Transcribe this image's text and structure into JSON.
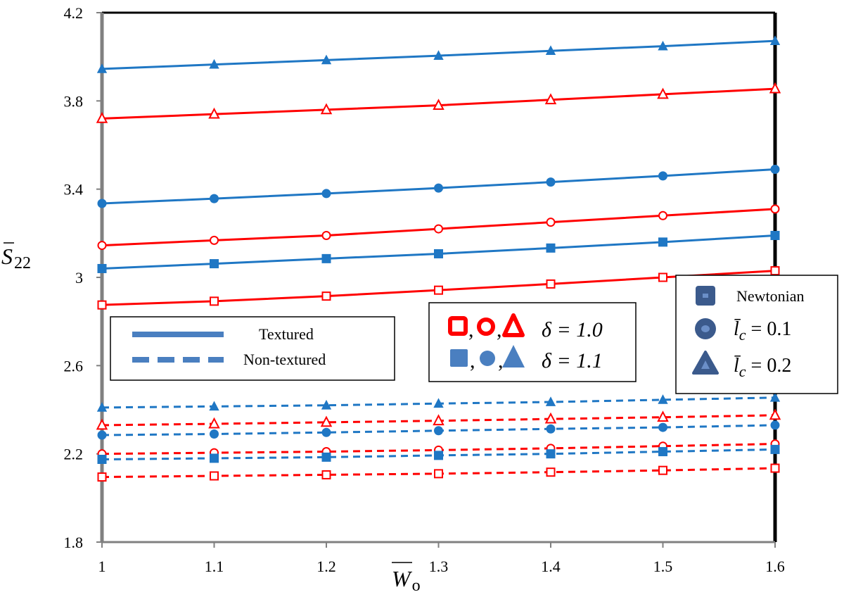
{
  "chart_data": {
    "type": "line",
    "x": [
      1,
      1.1,
      1.2,
      1.3,
      1.4,
      1.5,
      1.6
    ],
    "xlim": [
      1,
      1.6
    ],
    "ylim": [
      1.8,
      4.2
    ],
    "xticks": [
      "1",
      "1.1",
      "1.2",
      "1.3",
      "1.4",
      "1.5",
      "1.6"
    ],
    "yticks": [
      "1.8",
      "2.2",
      "2.6",
      "3",
      "3.4",
      "3.8",
      "4.2"
    ],
    "xlabel_base": "W",
    "xlabel_sub": "o",
    "ylabel_base": "S",
    "ylabel_sub": "22",
    "grid": false,
    "series": [
      {
        "style": "solid",
        "color": "#1f77c4",
        "marker": "triangle-filled",
        "values": [
          3.945,
          3.965,
          3.985,
          4.005,
          4.027,
          4.048,
          4.072
        ]
      },
      {
        "style": "solid",
        "color": "#ff0000",
        "marker": "triangle-open",
        "values": [
          3.72,
          3.74,
          3.76,
          3.78,
          3.805,
          3.83,
          3.855
        ]
      },
      {
        "style": "solid",
        "color": "#1f77c4",
        "marker": "circle-filled",
        "values": [
          3.335,
          3.357,
          3.38,
          3.405,
          3.432,
          3.46,
          3.49
        ]
      },
      {
        "style": "solid",
        "color": "#ff0000",
        "marker": "circle-open",
        "values": [
          3.145,
          3.168,
          3.19,
          3.22,
          3.25,
          3.28,
          3.31
        ]
      },
      {
        "style": "solid",
        "color": "#1f77c4",
        "marker": "square-filled",
        "values": [
          3.04,
          3.062,
          3.085,
          3.107,
          3.133,
          3.16,
          3.19
        ]
      },
      {
        "style": "solid",
        "color": "#ff0000",
        "marker": "square-open",
        "values": [
          2.875,
          2.892,
          2.915,
          2.942,
          2.97,
          3.0,
          3.03
        ]
      },
      {
        "style": "dashed",
        "color": "#1f77c4",
        "marker": "triangle-filled",
        "values": [
          2.41,
          2.415,
          2.42,
          2.428,
          2.435,
          2.445,
          2.455
        ]
      },
      {
        "style": "dashed",
        "color": "#ff0000",
        "marker": "triangle-open",
        "values": [
          2.33,
          2.336,
          2.343,
          2.35,
          2.358,
          2.366,
          2.375
        ]
      },
      {
        "style": "dashed",
        "color": "#1f77c4",
        "marker": "circle-filled",
        "values": [
          2.285,
          2.29,
          2.297,
          2.305,
          2.313,
          2.32,
          2.33
        ]
      },
      {
        "style": "dashed",
        "color": "#ff0000",
        "marker": "circle-open",
        "values": [
          2.2,
          2.205,
          2.21,
          2.217,
          2.225,
          2.235,
          2.245
        ]
      },
      {
        "style": "dashed",
        "color": "#1f77c4",
        "marker": "square-filled",
        "values": [
          2.175,
          2.18,
          2.185,
          2.193,
          2.2,
          2.21,
          2.22
        ]
      },
      {
        "style": "dashed",
        "color": "#ff0000",
        "marker": "square-open",
        "values": [
          2.095,
          2.1,
          2.105,
          2.11,
          2.117,
          2.125,
          2.135
        ]
      }
    ],
    "legend_lines": [
      {
        "label": "Textured",
        "style": "solid"
      },
      {
        "label": "Non-textured",
        "style": "dashed"
      }
    ],
    "legend_delta": [
      {
        "markers": "open",
        "color": "#ff0000",
        "text": "δ = 1.0"
      },
      {
        "markers": "filled",
        "color": "#4a7fc0",
        "text": "δ = 1.1"
      }
    ],
    "legend_models": [
      {
        "marker": "square",
        "label": "Newtonian"
      },
      {
        "marker": "circle",
        "label": "l̄",
        "sub": "c",
        "eq": " = 0.1"
      },
      {
        "marker": "triangle",
        "label": "l̄",
        "sub": "c",
        "eq": " = 0.2"
      }
    ],
    "colors": {
      "blue": "#1f77c4",
      "red": "#ff0000",
      "legend_blue": "#4a7fc0",
      "legend_dark": "#3b5a8c"
    }
  }
}
